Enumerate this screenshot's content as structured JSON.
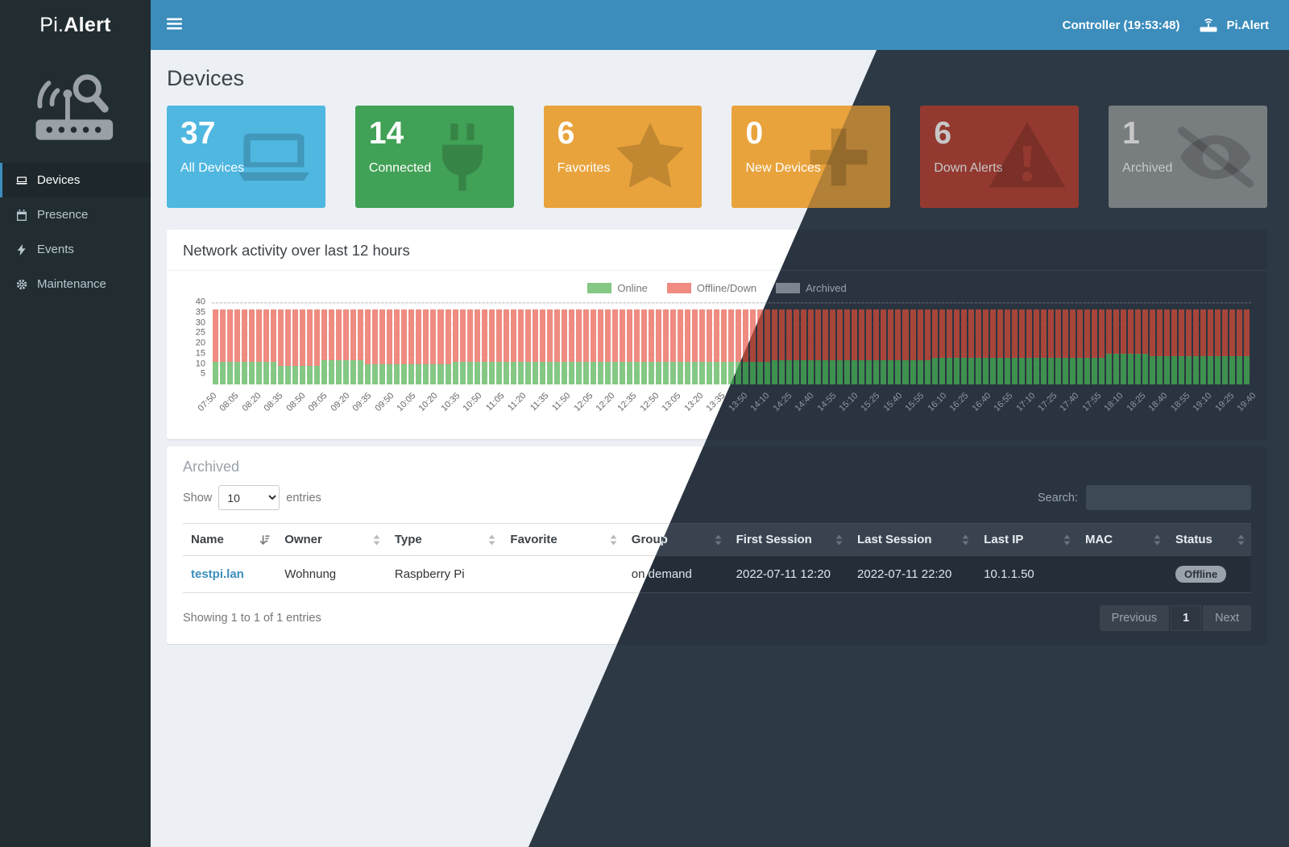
{
  "app": {
    "logo_prefix": "Pi.",
    "logo_bold": "Alert",
    "navbar": {
      "controller_label": "Controller (19:53:48)",
      "brand_right": "Pi.Alert"
    }
  },
  "colors": {
    "navbar_blue": "#3c8dbc",
    "sidebar_dark": "#222d32",
    "link_blue": "#3c8dbc",
    "badge_gray": "#9aa2ab"
  },
  "sidebar": {
    "items": [
      {
        "label": "Devices",
        "icon": "laptop-icon",
        "active": true
      },
      {
        "label": "Presence",
        "icon": "calendar-icon",
        "active": false
      },
      {
        "label": "Events",
        "icon": "bolt-icon",
        "active": false
      },
      {
        "label": "Maintenance",
        "icon": "gear-icon",
        "active": false
      }
    ]
  },
  "page": {
    "title": "Devices"
  },
  "stats": [
    {
      "value": "37",
      "label": "All Devices",
      "color": "#4fb7e0",
      "icon": "laptop-icon"
    },
    {
      "value": "14",
      "label": "Connected",
      "color": "#41a156",
      "icon": "plug-icon"
    },
    {
      "value": "6",
      "label": "Favorites",
      "color": "#e9a33c",
      "icon": "star-icon"
    },
    {
      "value": "0",
      "label": "New Devices",
      "color": "#e9a33c",
      "icon": "plus-icon"
    },
    {
      "value": "6",
      "label": "Down Alerts",
      "color": "#c4473a",
      "icon": "warning-icon"
    },
    {
      "value": "1",
      "label": "Archived",
      "color": "#9aa0a5",
      "icon": "eye-slash-icon"
    }
  ],
  "chart_data": {
    "type": "bar",
    "stacked": true,
    "title": "Network activity over last 12 hours",
    "xlabel": "",
    "ylabel": "",
    "ylim": [
      0,
      40
    ],
    "grid": true,
    "legend_position": "top",
    "y_ticks": [
      40,
      35,
      30,
      25,
      20,
      15,
      10,
      5
    ],
    "x_start": "07:50",
    "x_end": "19:40",
    "interval_minutes": 5,
    "x_ticks": [
      "07:50",
      "08:05",
      "08:20",
      "08:35",
      "08:50",
      "09:05",
      "09:20",
      "09:35",
      "09:50",
      "10:05",
      "10:20",
      "10:35",
      "10:50",
      "11:05",
      "11:20",
      "11:35",
      "11:50",
      "12:05",
      "12:20",
      "12:35",
      "12:50",
      "13:05",
      "13:20",
      "13:35",
      "13:50",
      "14:10",
      "14:25",
      "14:40",
      "14:55",
      "15:10",
      "15:25",
      "15:40",
      "15:55",
      "16:10",
      "16:25",
      "16:40",
      "16:55",
      "17:10",
      "17:25",
      "17:40",
      "17:55",
      "18:10",
      "18:25",
      "18:40",
      "18:55",
      "19:10",
      "19:25",
      "19:40"
    ],
    "legend": [
      {
        "label": "Online",
        "color_light": "#84c884",
        "color_dark": "#3f9150"
      },
      {
        "label": "Offline/Down",
        "color_light": "#ef8b80",
        "color_dark": "#a8453a"
      },
      {
        "label": "Archived",
        "color_light": "#9e9e9e",
        "color_dark": "#7c868f"
      }
    ],
    "series": [
      {
        "name": "Online",
        "values": [
          11,
          11,
          11,
          11,
          11,
          11,
          11,
          11,
          11,
          9,
          9,
          9,
          9,
          9,
          9,
          12,
          12,
          12,
          12,
          12,
          12,
          10,
          10,
          10,
          10,
          10,
          10,
          10,
          10,
          10,
          10,
          10,
          10,
          11,
          11,
          11,
          11,
          11,
          11,
          11,
          11,
          11,
          11,
          11,
          11,
          11,
          11,
          11,
          11,
          11,
          11,
          11,
          11,
          11,
          11,
          11,
          11,
          11,
          11,
          11,
          11,
          11,
          11,
          11,
          11,
          11,
          11,
          11,
          11,
          11,
          11,
          11,
          11,
          11,
          11,
          11,
          11,
          12,
          12,
          12,
          12,
          12,
          12,
          12,
          12,
          12,
          12,
          12,
          12,
          12,
          12,
          12,
          12,
          12,
          12,
          12,
          12,
          12,
          12,
          13,
          13,
          13,
          13,
          13,
          13,
          13,
          13,
          13,
          13,
          13,
          13,
          13,
          13,
          13,
          13,
          13,
          13,
          13,
          13,
          13,
          13,
          13,
          13,
          15,
          15,
          15,
          15,
          15,
          15,
          14,
          14,
          14,
          14,
          14,
          14,
          14,
          14,
          14,
          14,
          14,
          14,
          14,
          14
        ]
      },
      {
        "name": "Offline/Down",
        "values": [
          26,
          26,
          26,
          26,
          26,
          26,
          26,
          26,
          26,
          28,
          28,
          28,
          28,
          28,
          28,
          25,
          25,
          25,
          25,
          25,
          25,
          27,
          27,
          27,
          27,
          27,
          27,
          27,
          27,
          27,
          27,
          27,
          27,
          26,
          26,
          26,
          26,
          26,
          26,
          26,
          26,
          26,
          26,
          26,
          26,
          26,
          26,
          26,
          26,
          26,
          26,
          26,
          26,
          26,
          26,
          26,
          26,
          26,
          26,
          26,
          26,
          26,
          26,
          26,
          26,
          26,
          26,
          26,
          26,
          26,
          26,
          26,
          26,
          26,
          26,
          26,
          26,
          25,
          25,
          25,
          25,
          25,
          25,
          25,
          25,
          25,
          25,
          25,
          25,
          25,
          25,
          25,
          25,
          25,
          25,
          25,
          25,
          25,
          25,
          24,
          24,
          24,
          24,
          24,
          24,
          24,
          24,
          24,
          24,
          24,
          24,
          24,
          24,
          24,
          24,
          24,
          24,
          24,
          24,
          24,
          24,
          24,
          24,
          22,
          22,
          22,
          22,
          22,
          22,
          23,
          23,
          23,
          23,
          23,
          23,
          23,
          23,
          23,
          23,
          23,
          23,
          23,
          23
        ]
      }
    ]
  },
  "archived_panel": {
    "title": "Archived",
    "show_label": "Show",
    "page_length": "10",
    "entries_label": "entries",
    "search_label": "Search:",
    "search_value": "",
    "columns": [
      "Name",
      "Owner",
      "Type",
      "Favorite",
      "Group",
      "First Session",
      "Last Session",
      "Last IP",
      "MAC",
      "Status"
    ],
    "rows": [
      {
        "name": "testpi.lan",
        "owner": "Wohnung",
        "type": "Raspberry Pi",
        "favorite": "",
        "group": "on demand",
        "first_session": "2022-07-11  12:20",
        "last_session": "2022-07-11  22:20",
        "last_ip": "10.1.1.50",
        "mac": "",
        "status": "Offline"
      }
    ],
    "info": "Showing 1 to 1 of 1 entries",
    "pagination": {
      "previous": "Previous",
      "page": "1",
      "next": "Next"
    }
  }
}
